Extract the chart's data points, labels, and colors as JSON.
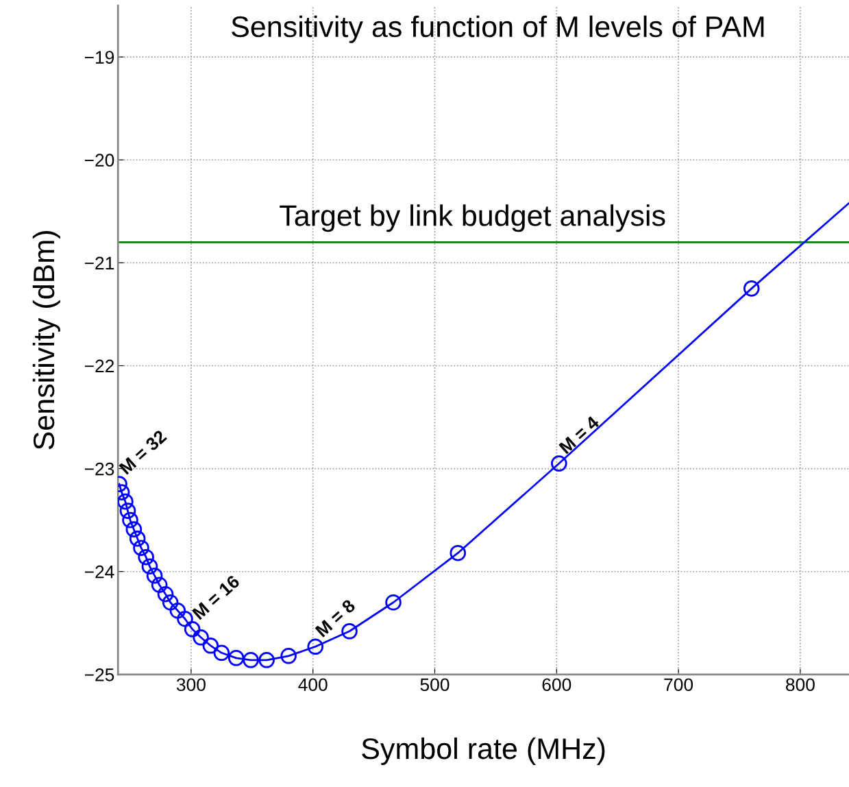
{
  "chart_data": {
    "type": "line",
    "title": "Sensitivity as function of M levels of PAM",
    "xlabel": "Symbol rate (MHz)",
    "ylabel": "Sensitivity (dBm)",
    "xlim": [
      240,
      840
    ],
    "ylim": [
      -25,
      -18.5
    ],
    "xticks": [
      300,
      400,
      500,
      600,
      700,
      800
    ],
    "yticks": [
      {
        "value": -25,
        "label": "−25"
      },
      {
        "value": -24,
        "label": "−24"
      },
      {
        "value": -23,
        "label": "−23"
      },
      {
        "value": -22,
        "label": "−22"
      },
      {
        "value": -21,
        "label": "−21"
      },
      {
        "value": -20,
        "label": "−20"
      },
      {
        "value": -19,
        "label": "−19"
      }
    ],
    "grid": true,
    "line_style": "solid",
    "series": [
      {
        "color": "#0000ff",
        "marker": "none",
        "x": [
          241,
          243,
          246,
          248,
          250,
          253,
          256,
          259,
          263,
          266,
          270,
          274,
          279,
          283,
          289,
          295,
          301,
          308,
          316,
          325,
          337,
          349,
          362,
          380,
          402,
          430,
          466,
          519,
          602,
          760,
          840
        ],
        "values": [
          -23.15,
          -23.23,
          -23.32,
          -23.41,
          -23.5,
          -23.59,
          -23.68,
          -23.77,
          -23.86,
          -23.95,
          -24.04,
          -24.13,
          -24.22,
          -24.3,
          -24.38,
          -24.46,
          -24.56,
          -24.64,
          -24.72,
          -24.79,
          -24.84,
          -24.86,
          -24.86,
          -24.82,
          -24.73,
          -24.58,
          -24.3,
          -23.82,
          -22.95,
          -21.25,
          -20.42
        ]
      },
      {
        "type": "scatter",
        "color": "#0000ff",
        "marker": "circle",
        "x": [
          241,
          243,
          246,
          248,
          250,
          253,
          256,
          259,
          263,
          266,
          270,
          274,
          279,
          283,
          289,
          295,
          301,
          308,
          316,
          325,
          337,
          349,
          362,
          380,
          402,
          430,
          466,
          519,
          602,
          760
        ],
        "values": [
          -23.15,
          -23.23,
          -23.32,
          -23.41,
          -23.5,
          -23.59,
          -23.68,
          -23.77,
          -23.86,
          -23.95,
          -24.04,
          -24.13,
          -24.22,
          -24.3,
          -24.38,
          -24.46,
          -24.56,
          -24.64,
          -24.72,
          -24.79,
          -24.84,
          -24.86,
          -24.86,
          -24.82,
          -24.73,
          -24.58,
          -24.3,
          -23.82,
          -22.95,
          -21.25
        ]
      }
    ],
    "ref_lines": [
      {
        "axis": "y",
        "value": -20.8,
        "label": "Target by link budget analysis",
        "color": "#008000",
        "line_style": "solid"
      }
    ],
    "annotations": [
      {
        "text": "M = 32",
        "x": 241,
        "y": -23.15
      },
      {
        "text": "M = 16",
        "x": 301,
        "y": -24.56
      },
      {
        "text": "M = 8",
        "x": 402,
        "y": -24.73
      },
      {
        "text": "M = 4",
        "x": 602,
        "y": -22.95
      }
    ]
  }
}
